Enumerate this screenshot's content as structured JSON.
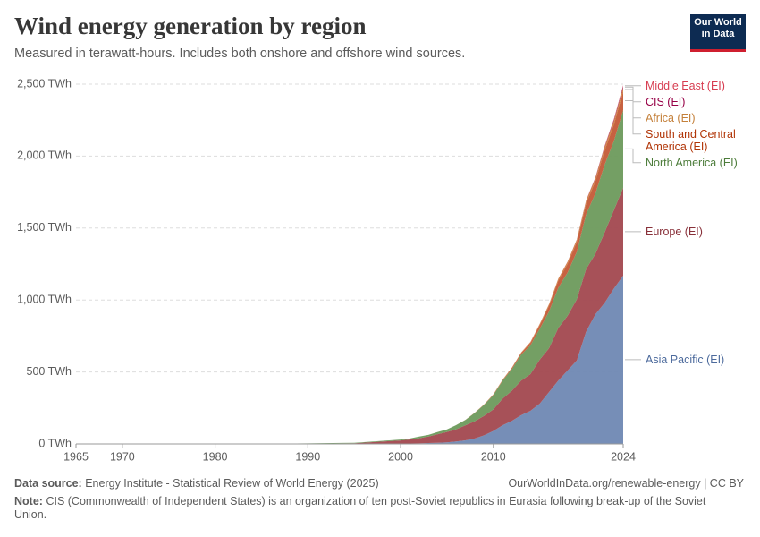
{
  "chart_data": {
    "type": "stacked_area",
    "title": "Wind energy generation by region",
    "subtitle": "Measured in terawatt-hours. Includes both onshore and offshore wind sources.",
    "logo": "Our World in Data",
    "source_label": "Data source:",
    "source": "Energy Institute - Statistical Review of World Energy (2025)",
    "url": "OurWorldInData.org/renewable-energy | CC BY",
    "note_label": "Note:",
    "note": "CIS (Commonwealth of Independent States) is an organization of ten post-Soviet republics in Eurasia following break-up of the Soviet Union.",
    "x": [
      1965,
      1970,
      1980,
      1985,
      1990,
      1995,
      2000,
      2001,
      2002,
      2003,
      2004,
      2005,
      2006,
      2007,
      2008,
      2009,
      2010,
      2011,
      2012,
      2013,
      2014,
      2015,
      2016,
      2017,
      2018,
      2019,
      2020,
      2021,
      2022,
      2023,
      2024
    ],
    "xlim": [
      1965,
      2024
    ],
    "xticks": [
      1965,
      1970,
      1980,
      1990,
      2000,
      2010,
      2024
    ],
    "ylim": [
      0,
      2500
    ],
    "yticks": [
      {
        "value": 0,
        "label": "0 TWh"
      },
      {
        "value": 500,
        "label": "500 TWh"
      },
      {
        "value": 1000,
        "label": "1,000 TWh"
      },
      {
        "value": 1500,
        "label": "1,500 TWh"
      },
      {
        "value": 2000,
        "label": "2,000 TWh"
      },
      {
        "value": 2500,
        "label": "2,500 TWh"
      }
    ],
    "grid": true,
    "series": [
      {
        "name": "Asia Pacific (EI)",
        "color": "#6f88b3",
        "label_color": "#4c6a9c",
        "values": [
          0,
          0,
          0,
          0,
          0,
          1,
          2,
          3,
          4,
          6,
          8,
          11,
          17,
          25,
          38,
          60,
          90,
          130,
          160,
          200,
          230,
          280,
          360,
          440,
          510,
          580,
          780,
          900,
          980,
          1080,
          1170
        ]
      },
      {
        "name": "Europe (EI)",
        "color": "#a2484f",
        "label_color": "#883039",
        "values": [
          0,
          0,
          0,
          0,
          1,
          4,
          22,
          28,
          36,
          45,
          60,
          72,
          85,
          105,
          120,
          135,
          150,
          185,
          210,
          240,
          255,
          305,
          305,
          365,
          380,
          425,
          435,
          420,
          490,
          545,
          610
        ]
      },
      {
        "name": "North America (EI)",
        "color": "#6d9a5c",
        "label_color": "#4c7c3a",
        "values": [
          0,
          0,
          0,
          1,
          3,
          3,
          6,
          7,
          11,
          12,
          15,
          18,
          29,
          37,
          58,
          77,
          100,
          125,
          150,
          180,
          200,
          215,
          255,
          280,
          300,
          330,
          380,
          420,
          470,
          480,
          540
        ]
      },
      {
        "name": "South and Central America (EI)",
        "color": "#c45a37",
        "label_color": "#b13507",
        "values": [
          0,
          0,
          0,
          0,
          0,
          0,
          0,
          0,
          0,
          0,
          0,
          0,
          0,
          0,
          1,
          2,
          3,
          4,
          8,
          12,
          17,
          25,
          40,
          50,
          60,
          68,
          75,
          85,
          100,
          115,
          130
        ]
      },
      {
        "name": "Africa (EI)",
        "color": "#d0803c",
        "label_color": "#c4803a",
        "values": [
          0,
          0,
          0,
          0,
          0,
          0,
          0,
          0,
          0,
          0,
          0,
          0,
          0,
          1,
          1,
          1,
          2,
          3,
          3,
          4,
          6,
          8,
          10,
          12,
          14,
          16,
          18,
          20,
          22,
          24,
          25
        ]
      },
      {
        "name": "CIS (EI)",
        "color": "#8c1a55",
        "label_color": "#970046",
        "values": [
          0,
          0,
          0,
          0,
          0,
          0,
          0,
          0,
          0,
          0,
          0,
          0,
          0,
          0,
          0,
          0,
          0,
          0,
          0,
          0,
          0,
          0,
          0,
          0,
          1,
          1,
          2,
          4,
          6,
          8,
          10
        ]
      },
      {
        "name": "Middle East (EI)",
        "color": "#d63f5e",
        "label_color": "#d73c50",
        "values": [
          0,
          0,
          0,
          0,
          0,
          0,
          0,
          0,
          0,
          0,
          0,
          0,
          0,
          0,
          0,
          0,
          0,
          0,
          0,
          0,
          1,
          1,
          1,
          1,
          1,
          1,
          2,
          3,
          4,
          6,
          8
        ]
      }
    ]
  }
}
